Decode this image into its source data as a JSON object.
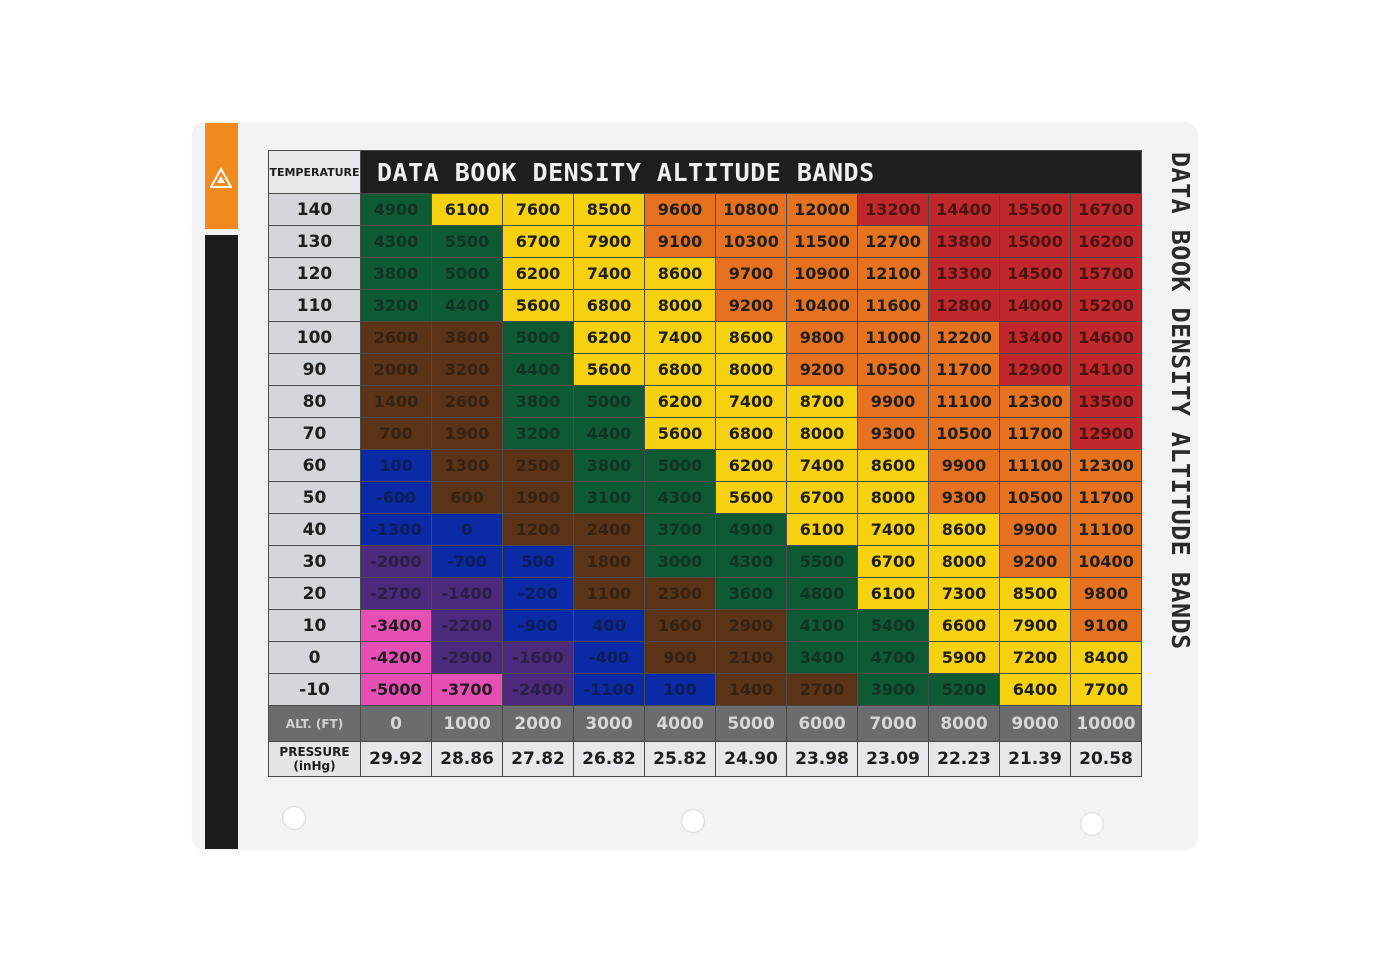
{
  "title": "DATA BOOK DENSITY ALTITUDE BANDS",
  "side_title": "DATA BOOK DENSITY ALTITUDE BANDS",
  "corner_label": "TEMPERATURE",
  "alt_label": "ALT. (FT)",
  "pressure_label": "PRESSURE (inHg)",
  "temperatures": [
    "140",
    "130",
    "120",
    "110",
    "100",
    "90",
    "80",
    "70",
    "60",
    "50",
    "40",
    "30",
    "20",
    "10",
    "0",
    "-10"
  ],
  "altitudes": [
    "0",
    "1000",
    "2000",
    "3000",
    "4000",
    "5000",
    "6000",
    "7000",
    "8000",
    "9000",
    "10000"
  ],
  "pressures": [
    "29.92",
    "28.86",
    "27.82",
    "26.82",
    "25.82",
    "24.90",
    "23.98",
    "23.09",
    "22.23",
    "21.39",
    "20.58"
  ],
  "values": [
    [
      "4900",
      "6100",
      "7600",
      "8500",
      "9600",
      "10800",
      "12000",
      "13200",
      "14400",
      "15500",
      "16700"
    ],
    [
      "4300",
      "5500",
      "6700",
      "7900",
      "9100",
      "10300",
      "11500",
      "12700",
      "13800",
      "15000",
      "16200"
    ],
    [
      "3800",
      "5000",
      "6200",
      "7400",
      "8600",
      "9700",
      "10900",
      "12100",
      "13300",
      "14500",
      "15700"
    ],
    [
      "3200",
      "4400",
      "5600",
      "6800",
      "8000",
      "9200",
      "10400",
      "11600",
      "12800",
      "14000",
      "15200"
    ],
    [
      "2600",
      "3800",
      "5000",
      "6200",
      "7400",
      "8600",
      "9800",
      "11000",
      "12200",
      "13400",
      "14600"
    ],
    [
      "2000",
      "3200",
      "4400",
      "5600",
      "6800",
      "8000",
      "9200",
      "10500",
      "11700",
      "12900",
      "14100"
    ],
    [
      "1400",
      "2600",
      "3800",
      "5000",
      "6200",
      "7400",
      "8700",
      "9900",
      "11100",
      "12300",
      "13500"
    ],
    [
      "700",
      "1900",
      "3200",
      "4400",
      "5600",
      "6800",
      "8000",
      "9300",
      "10500",
      "11700",
      "12900"
    ],
    [
      "100",
      "1300",
      "2500",
      "3800",
      "5000",
      "6200",
      "7400",
      "8600",
      "9900",
      "11100",
      "12300"
    ],
    [
      "-600",
      "600",
      "1900",
      "3100",
      "4300",
      "5600",
      "6700",
      "8000",
      "9300",
      "10500",
      "11700"
    ],
    [
      "-1300",
      "0",
      "1200",
      "2400",
      "3700",
      "4900",
      "6100",
      "7400",
      "8600",
      "9900",
      "11100"
    ],
    [
      "-2000",
      "-700",
      "500",
      "1800",
      "3000",
      "4300",
      "5500",
      "6700",
      "8000",
      "9200",
      "10400"
    ],
    [
      "-2700",
      "-1400",
      "-200",
      "1100",
      "2300",
      "3600",
      "4800",
      "6100",
      "7300",
      "8500",
      "9800"
    ],
    [
      "-3400",
      "-2200",
      "-900",
      "400",
      "1600",
      "2900",
      "4100",
      "5400",
      "6600",
      "7900",
      "9100"
    ],
    [
      "-4200",
      "-2900",
      "-1600",
      "-400",
      "900",
      "2100",
      "3400",
      "4700",
      "5900",
      "7200",
      "8400"
    ],
    [
      "-5000",
      "-3700",
      "-2400",
      "-1100",
      "100",
      "1400",
      "2700",
      "3900",
      "5200",
      "6400",
      "7700"
    ]
  ],
  "band_colors": {
    "pink": "#e84fb4",
    "purple": "#4b2a7c",
    "blue": "#0a2aa6",
    "brown": "#5b3417",
    "green": "#0e5a35",
    "yellow": "#f5d10f",
    "orange": "#e6721f",
    "red": "#c0282b"
  },
  "bands": [
    [
      "green",
      "yellow",
      "yellow",
      "yellow",
      "orange",
      "orange",
      "orange",
      "red",
      "red",
      "red",
      "red"
    ],
    [
      "green",
      "green",
      "yellow",
      "yellow",
      "orange",
      "orange",
      "orange",
      "orange",
      "red",
      "red",
      "red"
    ],
    [
      "green",
      "green",
      "yellow",
      "yellow",
      "yellow",
      "orange",
      "orange",
      "orange",
      "red",
      "red",
      "red"
    ],
    [
      "green",
      "green",
      "yellow",
      "yellow",
      "yellow",
      "orange",
      "orange",
      "orange",
      "red",
      "red",
      "red"
    ],
    [
      "brown",
      "brown",
      "green",
      "yellow",
      "yellow",
      "yellow",
      "orange",
      "orange",
      "orange",
      "red",
      "red"
    ],
    [
      "brown",
      "brown",
      "green",
      "yellow",
      "yellow",
      "yellow",
      "orange",
      "orange",
      "orange",
      "red",
      "red"
    ],
    [
      "brown",
      "brown",
      "green",
      "green",
      "yellow",
      "yellow",
      "yellow",
      "orange",
      "orange",
      "orange",
      "red"
    ],
    [
      "brown",
      "brown",
      "green",
      "green",
      "yellow",
      "yellow",
      "yellow",
      "orange",
      "orange",
      "orange",
      "red"
    ],
    [
      "blue",
      "brown",
      "brown",
      "green",
      "green",
      "yellow",
      "yellow",
      "yellow",
      "orange",
      "orange",
      "orange"
    ],
    [
      "blue",
      "brown",
      "brown",
      "green",
      "green",
      "yellow",
      "yellow",
      "yellow",
      "orange",
      "orange",
      "orange"
    ],
    [
      "blue",
      "blue",
      "brown",
      "brown",
      "green",
      "green",
      "yellow",
      "yellow",
      "yellow",
      "orange",
      "orange"
    ],
    [
      "purple",
      "blue",
      "blue",
      "brown",
      "green",
      "green",
      "green",
      "yellow",
      "yellow",
      "orange",
      "orange"
    ],
    [
      "purple",
      "purple",
      "blue",
      "brown",
      "brown",
      "green",
      "green",
      "yellow",
      "yellow",
      "yellow",
      "orange"
    ],
    [
      "pink",
      "purple",
      "blue",
      "blue",
      "brown",
      "brown",
      "green",
      "green",
      "yellow",
      "yellow",
      "orange"
    ],
    [
      "pink",
      "purple",
      "purple",
      "blue",
      "brown",
      "brown",
      "green",
      "green",
      "yellow",
      "yellow",
      "yellow"
    ],
    [
      "pink",
      "pink",
      "purple",
      "blue",
      "blue",
      "brown",
      "brown",
      "green",
      "green",
      "yellow",
      "yellow"
    ]
  ],
  "dark_bands": [
    "purple",
    "blue",
    "brown",
    "green",
    "red"
  ],
  "card_colors": {
    "orange_strip": "#ee8a1e",
    "black_strip": "#1b1b1b",
    "title_bar": "#1e1e1e",
    "alt_row": "#6a6c70"
  },
  "icons": {
    "logo": "triangle-logo-icon",
    "holes": "punch-hole"
  }
}
